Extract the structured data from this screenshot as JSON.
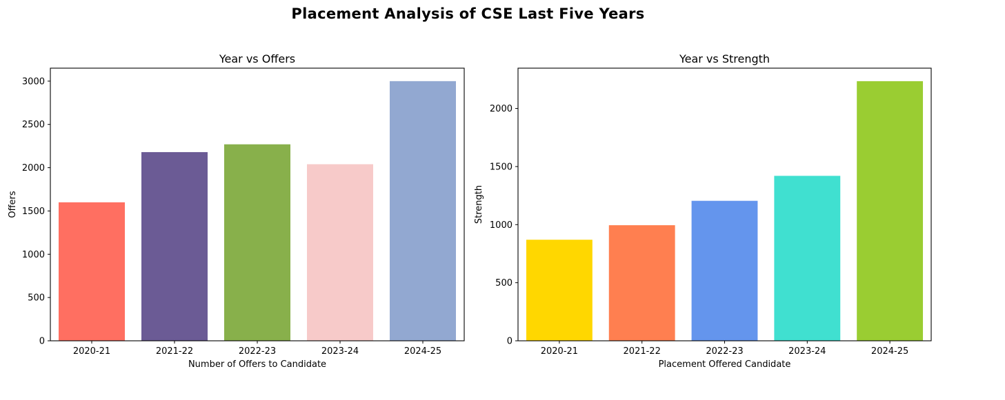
{
  "figure": {
    "title": "Placement Analysis of CSE Last Five Years"
  },
  "chart_data": [
    {
      "type": "bar",
      "title": "Year vs Offers",
      "xlabel": "Number of Offers to Candidate",
      "ylabel": "Offers",
      "categories": [
        "2020-21",
        "2021-22",
        "2022-23",
        "2023-24",
        "2024-25"
      ],
      "values": [
        1600,
        2180,
        2270,
        2040,
        3000
      ],
      "colors": [
        "#ff6f61",
        "#6b5b95",
        "#88b04b",
        "#f7cac9",
        "#92a8d1"
      ],
      "ylim": [
        0,
        3150
      ],
      "yticks": [
        0,
        500,
        1000,
        1500,
        2000,
        2500,
        3000
      ],
      "grid": false
    },
    {
      "type": "bar",
      "title": "Year vs Strength",
      "xlabel": "Placement Offered Candidate",
      "ylabel": "Strength",
      "categories": [
        "2020-21",
        "2021-22",
        "2022-23",
        "2023-24",
        "2024-25"
      ],
      "values": [
        870,
        995,
        1205,
        1420,
        2235
      ],
      "colors": [
        "#ffd700",
        "#ff7f50",
        "#6495ed",
        "#40e0d0",
        "#9acd32"
      ],
      "ylim": [
        0,
        2347
      ],
      "yticks": [
        0,
        500,
        1000,
        1500,
        2000
      ],
      "grid": false
    }
  ]
}
